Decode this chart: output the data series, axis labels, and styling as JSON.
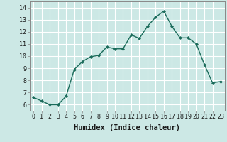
{
  "x": [
    0,
    1,
    2,
    3,
    4,
    5,
    6,
    7,
    8,
    9,
    10,
    11,
    12,
    13,
    14,
    15,
    16,
    17,
    18,
    19,
    20,
    21,
    22,
    23
  ],
  "y": [
    6.6,
    6.3,
    6.0,
    6.0,
    6.7,
    8.9,
    9.55,
    9.95,
    10.05,
    10.75,
    10.6,
    10.6,
    11.75,
    11.45,
    12.45,
    13.2,
    13.7,
    12.45,
    11.5,
    11.5,
    11.0,
    9.3,
    7.8,
    7.9
  ],
  "line_color": "#1a6b5a",
  "marker": "D",
  "marker_size": 2.0,
  "bg_color": "#cce8e5",
  "grid_color": "#ffffff",
  "xlabel": "Humidex (Indice chaleur)",
  "xlim": [
    -0.5,
    23.5
  ],
  "ylim": [
    5.5,
    14.5
  ],
  "yticks": [
    6,
    7,
    8,
    9,
    10,
    11,
    12,
    13,
    14
  ],
  "xticks": [
    0,
    1,
    2,
    3,
    4,
    5,
    6,
    7,
    8,
    9,
    10,
    11,
    12,
    13,
    14,
    15,
    16,
    17,
    18,
    19,
    20,
    21,
    22,
    23
  ],
  "tick_fontsize": 6.0,
  "xlabel_fontsize": 7.5,
  "linewidth": 1.0,
  "spine_color": "#888888",
  "grid_linewidth": 0.8
}
